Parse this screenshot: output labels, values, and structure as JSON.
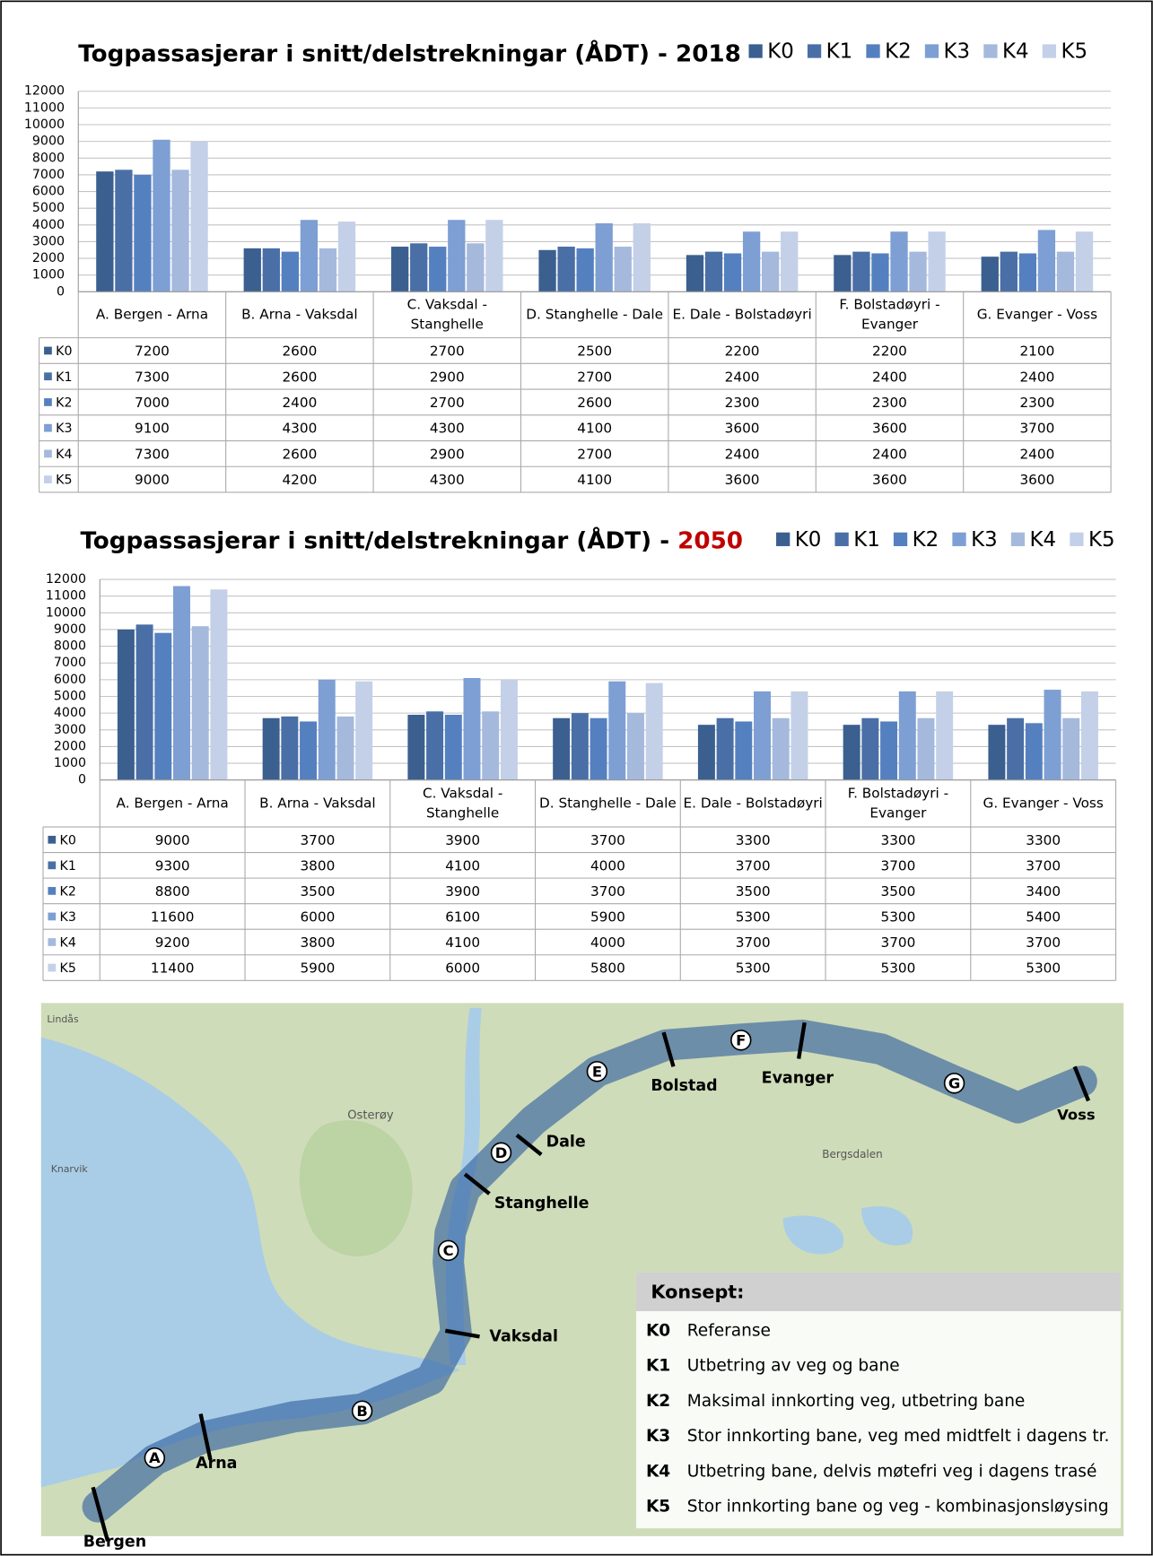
{
  "chart_data": [
    {
      "type": "bar",
      "title": "Togpassasjerar i snitt/delstrekningar (ÅDT) - ",
      "title_year": "2018",
      "title_year_color": "#000000",
      "categories": [
        [
          "A. Bergen - Arna"
        ],
        [
          "B. Arna - Vaksdal"
        ],
        [
          "C. Vaksdal -",
          "Stanghelle"
        ],
        [
          "D. Stanghelle - Dale"
        ],
        [
          "E. Dale - Bolstadøyri"
        ],
        [
          "F. Bolstadøyri -",
          "Evanger"
        ],
        [
          "G. Evanger - Voss"
        ]
      ],
      "series": [
        {
          "name": "K0",
          "color": "#3b5f8f",
          "values": [
            7200,
            2600,
            2700,
            2500,
            2200,
            2200,
            2100
          ]
        },
        {
          "name": "K1",
          "color": "#4a6fa6",
          "values": [
            7300,
            2600,
            2900,
            2700,
            2400,
            2400,
            2400
          ]
        },
        {
          "name": "K2",
          "color": "#5580bf",
          "values": [
            7000,
            2400,
            2700,
            2600,
            2300,
            2300,
            2300
          ]
        },
        {
          "name": "K3",
          "color": "#7d9fd3",
          "values": [
            9100,
            4300,
            4300,
            4100,
            3600,
            3600,
            3700
          ]
        },
        {
          "name": "K4",
          "color": "#a4b9dc",
          "values": [
            7300,
            2600,
            2900,
            2700,
            2400,
            2400,
            2400
          ]
        },
        {
          "name": "K5",
          "color": "#c3d0e8",
          "values": [
            9000,
            4200,
            4300,
            4100,
            3600,
            3600,
            3600
          ]
        }
      ],
      "ylim": [
        0,
        12000
      ],
      "yticks": [
        0,
        1000,
        2000,
        3000,
        4000,
        5000,
        6000,
        7000,
        8000,
        9000,
        10000,
        11000,
        12000
      ],
      "grid": true
    },
    {
      "type": "bar",
      "title": "Togpassasjerar i snitt/delstrekningar (ÅDT) - ",
      "title_year": "2050",
      "title_year_color": "#c00000",
      "categories": [
        [
          "A. Bergen - Arna"
        ],
        [
          "B. Arna - Vaksdal"
        ],
        [
          "C. Vaksdal -",
          "Stanghelle"
        ],
        [
          "D. Stanghelle - Dale"
        ],
        [
          "E. Dale - Bolstadøyri"
        ],
        [
          "F. Bolstadøyri -",
          "Evanger"
        ],
        [
          "G. Evanger - Voss"
        ]
      ],
      "series": [
        {
          "name": "K0",
          "color": "#3b5f8f",
          "values": [
            9000,
            3700,
            3900,
            3700,
            3300,
            3300,
            3300
          ]
        },
        {
          "name": "K1",
          "color": "#4a6fa6",
          "values": [
            9300,
            3800,
            4100,
            4000,
            3700,
            3700,
            3700
          ]
        },
        {
          "name": "K2",
          "color": "#5580bf",
          "values": [
            8800,
            3500,
            3900,
            3700,
            3500,
            3500,
            3400
          ]
        },
        {
          "name": "K3",
          "color": "#7d9fd3",
          "values": [
            11600,
            6000,
            6100,
            5900,
            5300,
            5300,
            5400
          ]
        },
        {
          "name": "K4",
          "color": "#a4b9dc",
          "values": [
            9200,
            3800,
            4100,
            4000,
            3700,
            3700,
            3700
          ]
        },
        {
          "name": "K5",
          "color": "#c3d0e8",
          "values": [
            11400,
            5900,
            6000,
            5800,
            5300,
            5300,
            5300
          ]
        }
      ],
      "ylim": [
        0,
        12000
      ],
      "yticks": [
        0,
        1000,
        2000,
        3000,
        4000,
        5000,
        6000,
        7000,
        8000,
        9000,
        10000,
        11000,
        12000
      ],
      "grid": true
    }
  ],
  "map": {
    "places": [
      "Bergen",
      "Arna",
      "Vaksdal",
      "Stanghelle",
      "Dale",
      "Bolstad",
      "Evanger",
      "Voss",
      "Osterøy",
      "Lindås",
      "Knarvik",
      "Bergsdalen"
    ],
    "sections": [
      "A",
      "B",
      "C",
      "D",
      "E",
      "F",
      "G"
    ],
    "legend": {
      "title": "Konsept:",
      "items": [
        {
          "code": "K0",
          "text": "Referanse"
        },
        {
          "code": "K1",
          "text": "Utbetring av veg og bane"
        },
        {
          "code": "K2",
          "text": "Maksimal innkorting veg, utbetring bane"
        },
        {
          "code": "K3",
          "text": "Stor innkorting bane, veg med midtfelt i dagens tr."
        },
        {
          "code": "K4",
          "text": "Utbetring bane, delvis møtefri veg i dagens trasé"
        },
        {
          "code": "K5",
          "text": "Stor innkorting bane og veg - kombinasjonsløysing"
        }
      ]
    }
  }
}
